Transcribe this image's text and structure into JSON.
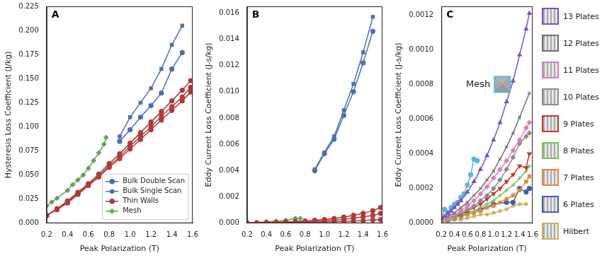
{
  "chart_data": [
    {
      "type": "line",
      "title": "A",
      "x_label": "Peak Polarization (T)",
      "y_label": "Hysteresis Loss Coefficient (J/kg)",
      "xlim": [
        0.2,
        1.6
      ],
      "xticks": [
        0.2,
        0.4,
        0.6,
        0.8,
        {
          "value": 1,
          "label": "1.0"
        },
        1.2,
        1.4,
        1.6
      ],
      "ylim": [
        0,
        0.225
      ],
      "yticks": [
        {
          "value": 0,
          "label": "0.000"
        },
        {
          "value": 0.025,
          "label": "0.025"
        },
        {
          "value": 0.05,
          "label": "0.050"
        },
        {
          "value": 0.075,
          "label": "0.075"
        },
        {
          "value": 0.1,
          "label": "0.100"
        },
        {
          "value": 0.125,
          "label": "0.125"
        },
        {
          "value": 0.15,
          "label": "0.150"
        },
        {
          "value": 0.175,
          "label": "0.175"
        },
        {
          "value": 0.2,
          "label": "0.200"
        },
        {
          "value": 0.225,
          "label": "0.225"
        }
      ],
      "grid": false,
      "legend": "lower right",
      "series": [
        {
          "name": "Bulk Double Scan",
          "color": "#4a6fb5",
          "marker": "circle",
          "x": [
            0.9,
            1.0,
            1.1,
            1.2,
            1.3,
            1.4,
            1.5
          ],
          "values": [
            0.085,
            0.097,
            0.11,
            0.122,
            0.135,
            0.16,
            0.177
          ]
        },
        {
          "name": "Bulk Single Scan",
          "color": "#4a6fb5",
          "marker": "square",
          "x": [
            0.9,
            1.0,
            1.1,
            1.2,
            1.3,
            1.4,
            1.5
          ],
          "values": [
            0.09,
            0.11,
            0.125,
            0.14,
            0.16,
            0.185,
            0.205
          ]
        },
        {
          "name": "Thin Walls",
          "color": "#b03a3a",
          "marker": "circle",
          "x": [
            0.2,
            0.3,
            0.4,
            0.5,
            0.6,
            0.7,
            0.8,
            0.9,
            1.0,
            1.1,
            1.2,
            1.3,
            1.4,
            1.5,
            1.58
          ],
          "values": [
            0.008,
            0.015,
            0.023,
            0.032,
            0.041,
            0.051,
            0.062,
            0.072,
            0.083,
            0.094,
            0.105,
            0.116,
            0.127,
            0.138,
            0.148
          ]
        },
        {
          "name": "Thin Walls",
          "color": "#b03a3a",
          "marker": "circle",
          "x": [
            0.2,
            0.3,
            0.4,
            0.5,
            0.6,
            0.7,
            0.8,
            0.9,
            1.0,
            1.1,
            1.2,
            1.3,
            1.4,
            1.5,
            1.58
          ],
          "values": [
            0.008,
            0.015,
            0.022,
            0.031,
            0.04,
            0.049,
            0.06,
            0.069,
            0.08,
            0.09,
            0.1,
            0.111,
            0.121,
            0.131,
            0.141
          ]
        },
        {
          "name": "Thin Walls",
          "color": "#b03a3a",
          "marker": "circle",
          "x": [
            0.2,
            0.3,
            0.4,
            0.5,
            0.6,
            0.7,
            0.8,
            0.9,
            1.0,
            1.1,
            1.2,
            1.3,
            1.4,
            1.5,
            1.58
          ],
          "values": [
            0.008,
            0.014,
            0.021,
            0.03,
            0.039,
            0.048,
            0.058,
            0.067,
            0.077,
            0.087,
            0.097,
            0.107,
            0.117,
            0.127,
            0.136
          ]
        },
        {
          "name": "Mesh",
          "color": "#5fa55a",
          "marker": "diamond",
          "x": [
            0.2,
            0.25,
            0.3,
            0.4,
            0.45,
            0.5,
            0.55,
            0.6,
            0.65,
            0.7,
            0.75,
            0.77
          ],
          "values": [
            0.018,
            0.022,
            0.026,
            0.034,
            0.04,
            0.045,
            0.05,
            0.057,
            0.065,
            0.073,
            0.082,
            0.089
          ]
        }
      ]
    },
    {
      "type": "line",
      "title": "B",
      "x_label": "Peak Polarization (T)",
      "y_label": "Eddy Current Loss Coefficient (J-s/kg)",
      "xlim": [
        0.2,
        1.6
      ],
      "xticks": [
        0.2,
        0.4,
        0.6,
        0.8,
        {
          "value": 1,
          "label": "1.0"
        },
        1.2,
        1.4,
        1.6
      ],
      "ylim": [
        0,
        0.0165
      ],
      "yticks": [
        {
          "value": 0,
          "label": "0.000"
        },
        {
          "value": 0.002,
          "label": "0.002"
        },
        {
          "value": 0.004,
          "label": "0.004"
        },
        {
          "value": 0.006,
          "label": "0.006"
        },
        {
          "value": 0.008,
          "label": "0.008"
        },
        {
          "value": 0.01,
          "label": "0.010"
        },
        {
          "value": 0.012,
          "label": "0.012"
        },
        {
          "value": 0.014,
          "label": "0.014"
        },
        {
          "value": 0.016,
          "label": "0.016"
        }
      ],
      "grid": false,
      "series": [
        {
          "color": "#4a6fb5",
          "marker": "circle",
          "x": [
            0.9,
            1.0,
            1.1,
            1.2,
            1.3,
            1.4,
            1.5
          ],
          "values": [
            0.004,
            0.0053,
            0.0064,
            0.0082,
            0.01,
            0.0122,
            0.0146
          ]
        },
        {
          "color": "#4a6fb5",
          "marker": "square",
          "x": [
            0.9,
            1.0,
            1.1,
            1.2,
            1.3,
            1.4,
            1.5
          ],
          "values": [
            0.0041,
            0.0054,
            0.0066,
            0.0086,
            0.0106,
            0.013,
            0.0157
          ]
        },
        {
          "color": "#b03a3a",
          "marker": "circle",
          "x": [
            0.2,
            0.3,
            0.4,
            0.5,
            0.6,
            0.7,
            0.8,
            0.9,
            1.0,
            1.1,
            1.2,
            1.3,
            1.4,
            1.5,
            1.58
          ],
          "values": [
            2e-05,
            3e-05,
            5e-05,
            7e-05,
            0.0001,
            0.00013,
            0.00017,
            0.00022,
            0.00028,
            0.00036,
            0.00047,
            0.0006,
            0.00075,
            0.00095,
            0.0012
          ]
        },
        {
          "color": "#b03a3a",
          "marker": "circle",
          "x": [
            0.2,
            0.3,
            0.4,
            0.5,
            0.6,
            0.7,
            0.8,
            0.9,
            1.0,
            1.1,
            1.2,
            1.3,
            1.4,
            1.5,
            1.58
          ],
          "values": [
            1e-05,
            2e-05,
            3e-05,
            5e-05,
            7e-05,
            9e-05,
            0.00012,
            0.00015,
            0.00019,
            0.00024,
            0.0003,
            0.00038,
            0.00048,
            0.0006,
            0.00075
          ]
        },
        {
          "color": "#b03a3a",
          "marker": "circle",
          "x": [
            0.2,
            0.3,
            0.4,
            0.5,
            0.6,
            0.7,
            0.8,
            0.9,
            1.0,
            1.1,
            1.2,
            1.3,
            1.4,
            1.5,
            1.58
          ],
          "values": [
            1e-05,
            1e-05,
            2e-05,
            3e-05,
            4e-05,
            5e-05,
            6e-05,
            8e-05,
            0.0001,
            0.00012,
            0.00014,
            0.00017,
            0.0002,
            0.00024,
            0.00027
          ]
        },
        {
          "color": "#5fa55a",
          "marker": "diamond",
          "x": [
            0.2,
            0.3,
            0.4,
            0.5,
            0.6,
            0.7,
            0.75
          ],
          "values": [
            3e-05,
            6e-05,
            0.00011,
            0.00015,
            0.00022,
            0.00037,
            0.00036
          ]
        }
      ]
    },
    {
      "type": "line",
      "title": "C",
      "x_label": "Peak Polarization (T)",
      "y_label": "Eddy Current Loss Coefficient (J-s/kg)",
      "xlim": [
        0.2,
        1.6
      ],
      "xticks": [
        0.2,
        0.4,
        0.6,
        0.8,
        {
          "value": 1,
          "label": "1.0"
        },
        1.2,
        1.4,
        1.6
      ],
      "ylim": [
        0,
        0.00125
      ],
      "yticks": [
        {
          "value": 0,
          "label": "0.0000"
        },
        {
          "value": 0.0002,
          "label": "0.0002"
        },
        {
          "value": 0.0004,
          "label": "0.0004"
        },
        {
          "value": 0.0006,
          "label": "0.0006"
        },
        {
          "value": 0.0008,
          "label": "0.0008"
        },
        {
          "value": 0.001,
          "label": "0.0010"
        },
        {
          "value": 0.0012,
          "label": "0.0012"
        }
      ],
      "grid": false,
      "legend": "right",
      "annotations": [
        {
          "text": "Mesh"
        }
      ],
      "series": [
        {
          "name": "13 Plates",
          "color": "#7b4fc9",
          "marker": "triangle",
          "x": [
            0.2,
            0.25,
            0.3,
            0.35,
            0.4,
            0.45,
            0.5,
            0.6,
            0.7,
            0.8,
            0.9,
            1.0,
            1.1,
            1.2,
            1.3,
            1.4,
            1.5,
            1.55
          ],
          "values": [
            3e-05,
            4e-05,
            6e-05,
            7e-05,
            9e-05,
            0.00011,
            0.00013,
            0.00018,
            0.00024,
            0.00031,
            0.00039,
            0.00048,
            0.00058,
            0.0007,
            0.00082,
            0.00097,
            0.00112,
            0.00121
          ]
        },
        {
          "name": "12 Plates",
          "color": "#6e6e6e",
          "marker": "x",
          "x": [
            0.3,
            0.4,
            0.5,
            0.6,
            0.7,
            0.8,
            0.9,
            1.0,
            1.1,
            1.2,
            1.3,
            1.4,
            1.55
          ],
          "values": [
            4e-05,
            6e-05,
            9e-05,
            0.00012,
            0.00016,
            0.0002,
            0.00025,
            0.0003,
            0.00037,
            0.00044,
            0.00052,
            0.00061,
            0.00075
          ]
        },
        {
          "name": "11 Plates",
          "color": "#e377c2",
          "marker": "diamond",
          "x": [
            0.3,
            0.4,
            0.5,
            0.6,
            0.7,
            0.8,
            0.9,
            1.0,
            1.1,
            1.2,
            1.3,
            1.4,
            1.5,
            1.55
          ],
          "values": [
            3e-05,
            5e-05,
            7e-05,
            0.0001,
            0.00013,
            0.00017,
            0.00021,
            0.00026,
            0.00031,
            0.00036,
            0.00042,
            0.00048,
            0.00055,
            0.00058
          ]
        },
        {
          "name": "10 Plates",
          "color": "#8c8c8c",
          "marker": "diamond",
          "x": [
            0.3,
            0.4,
            0.5,
            0.6,
            0.7,
            0.8,
            0.9,
            1.0,
            1.1,
            1.2,
            1.3,
            1.4,
            1.5,
            1.55
          ],
          "values": [
            3e-05,
            4e-05,
            6e-05,
            8e-05,
            0.0001,
            0.00013,
            0.00016,
            0.0002,
            0.00025,
            0.00031,
            0.00038,
            0.00046,
            0.0005,
            0.00052
          ]
        },
        {
          "name": "9 Plates",
          "color": "#c0392b",
          "marker": "triangle_down",
          "x": [
            0.2,
            0.3,
            0.4,
            0.5,
            0.6,
            0.7,
            0.8,
            0.9,
            1.0,
            1.1,
            1.2,
            1.3,
            1.4,
            1.5,
            1.55
          ],
          "values": [
            2e-05,
            3e-05,
            4e-05,
            5e-05,
            7e-05,
            9e-05,
            0.00011,
            0.00014,
            0.00017,
            0.0002,
            0.00024,
            0.00028,
            0.00033,
            0.00032,
            0.0004
          ]
        },
        {
          "name": "8 Plates",
          "color": "#7cbf5a",
          "marker": "plus",
          "x": [
            0.3,
            0.4,
            0.5,
            0.6,
            0.7,
            0.8,
            0.9,
            1.0,
            1.1,
            1.2,
            1.3,
            1.4,
            1.5,
            1.55
          ],
          "values": [
            2e-05,
            3e-05,
            4e-05,
            6e-05,
            7e-05,
            9e-05,
            0.00011,
            0.00013,
            0.00016,
            0.00019,
            0.00022,
            0.00026,
            0.0003,
            0.00033
          ]
        },
        {
          "name": "7 Plates",
          "color": "#e08a3c",
          "marker": "square",
          "x": [
            0.2,
            0.3,
            0.4,
            0.5,
            0.6,
            0.7,
            0.8,
            0.9,
            1.0,
            1.1,
            1.2,
            1.3,
            1.4,
            1.5,
            1.55
          ],
          "values": [
            1e-05,
            2e-05,
            3e-05,
            4e-05,
            5e-05,
            6e-05,
            7e-05,
            9e-05,
            0.0001,
            0.00012,
            0.00014,
            0.00016,
            0.00019,
            0.00024,
            0.00027
          ]
        },
        {
          "name": "6 Plates",
          "color": "#3f5fa8",
          "marker": "circle",
          "x": [
            0.3,
            0.4,
            0.5,
            0.6,
            0.8,
            1.0,
            1.2,
            1.3,
            1.4,
            1.5,
            1.55
          ],
          "values": [
            2e-05,
            3e-05,
            4e-05,
            6e-05,
            8e-05,
            0.00011,
            0.00012,
            0.00012,
            0.0002,
            0.00018,
            0.0002
          ]
        },
        {
          "name": "Hilbert",
          "color": "#c9b458",
          "marker": "star",
          "x": [
            0.2,
            0.3,
            0.4,
            0.5,
            0.6,
            0.7,
            0.8,
            0.9,
            1.0,
            1.1,
            1.2,
            1.3,
            1.4,
            1.5
          ],
          "values": [
            1e-05,
            1e-05,
            2e-05,
            2e-05,
            3e-05,
            4e-05,
            5e-05,
            5e-05,
            6e-05,
            7e-05,
            8e-05,
            0.0001,
            0.00011,
            0.00011
          ]
        },
        {
          "color": "#5ab4e0",
          "marker": "circle",
          "x": [
            0.2,
            0.25,
            0.3,
            0.35,
            0.4,
            0.45,
            0.5,
            0.55,
            0.6,
            0.65,
            0.7,
            0.75
          ],
          "values": [
            3e-05,
            8e-05,
            6e-05,
            9e-05,
            0.00011,
            0.00012,
            0.00015,
            0.00017,
            0.00022,
            0.00028,
            0.00037,
            0.00036
          ]
        }
      ]
    }
  ]
}
